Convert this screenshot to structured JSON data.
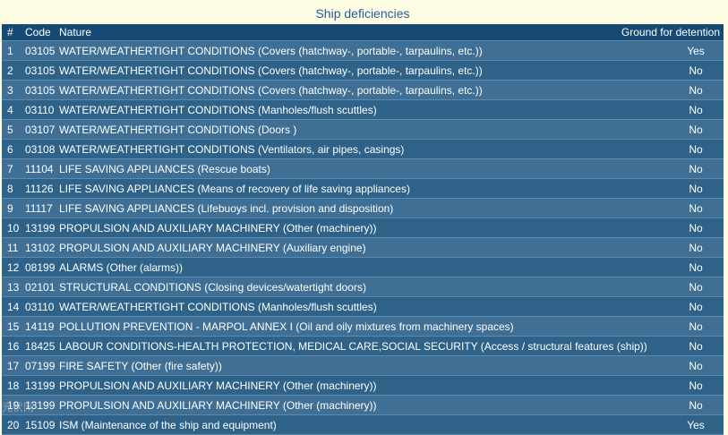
{
  "title": "Ship deficiencies",
  "table": {
    "headers": {
      "num": "#",
      "code": "Code",
      "nature": "Nature",
      "ground": "Ground for detention"
    },
    "rows": [
      {
        "num": "1",
        "code": "03105",
        "nature": "WATER/WEATHERTIGHT CONDITIONS (Covers (hatchway-, portable-, tarpaulins, etc.))",
        "ground": "Yes"
      },
      {
        "num": "2",
        "code": "03105",
        "nature": "WATER/WEATHERTIGHT CONDITIONS (Covers (hatchway-, portable-, tarpaulins, etc.))",
        "ground": "No"
      },
      {
        "num": "3",
        "code": "03105",
        "nature": "WATER/WEATHERTIGHT CONDITIONS (Covers (hatchway-, portable-, tarpaulins, etc.))",
        "ground": "No"
      },
      {
        "num": "4",
        "code": "03110",
        "nature": "WATER/WEATHERTIGHT CONDITIONS (Manholes/flush scuttles)",
        "ground": "No"
      },
      {
        "num": "5",
        "code": "03107",
        "nature": "WATER/WEATHERTIGHT CONDITIONS (Doors )",
        "ground": "No"
      },
      {
        "num": "6",
        "code": "03108",
        "nature": "WATER/WEATHERTIGHT CONDITIONS (Ventilators, air pipes, casings)",
        "ground": "No"
      },
      {
        "num": "7",
        "code": "11104",
        "nature": "LIFE SAVING APPLIANCES (Rescue boats)",
        "ground": "No"
      },
      {
        "num": "8",
        "code": "11126",
        "nature": "LIFE SAVING APPLIANCES (Means of recovery of life saving appliances)",
        "ground": "No"
      },
      {
        "num": "9",
        "code": "11117",
        "nature": "LIFE SAVING APPLIANCES (Lifebuoys incl. provision and disposition)",
        "ground": "No"
      },
      {
        "num": "10",
        "code": "13199",
        "nature": "PROPULSION AND AUXILIARY MACHINERY (Other (machinery))",
        "ground": "No"
      },
      {
        "num": "11",
        "code": "13102",
        "nature": "PROPULSION AND AUXILIARY MACHINERY (Auxiliary engine)",
        "ground": "No"
      },
      {
        "num": "12",
        "code": "08199",
        "nature": "ALARMS (Other (alarms))",
        "ground": "No"
      },
      {
        "num": "13",
        "code": "02101",
        "nature": "STRUCTURAL CONDITIONS (Closing devices/watertight doors)",
        "ground": "No"
      },
      {
        "num": "14",
        "code": "03110",
        "nature": "WATER/WEATHERTIGHT CONDITIONS (Manholes/flush scuttles)",
        "ground": "No"
      },
      {
        "num": "15",
        "code": "14119",
        "nature": "POLLUTION PREVENTION - MARPOL ANNEX I (Oil and oily mixtures from machinery spaces)",
        "ground": "No"
      },
      {
        "num": "16",
        "code": "18425",
        "nature": "LABOUR CONDITIONS-HEALTH PROTECTION, MEDICAL CARE,SOCIAL SECURITY (Access / structural features (ship))",
        "ground": "No"
      },
      {
        "num": "17",
        "code": "07199",
        "nature": "FIRE SAFETY (Other (fire safety))",
        "ground": "No"
      },
      {
        "num": "18",
        "code": "13199",
        "nature": "PROPULSION AND AUXILIARY MACHINERY (Other (machinery))",
        "ground": "No"
      },
      {
        "num": "19",
        "code": "13199",
        "nature": "PROPULSION AND AUXILIARY MACHINERY (Other (machinery))",
        "ground": "No"
      },
      {
        "num": "20",
        "code": "15109",
        "nature": "ISM (Maintenance of the ship and equipment)",
        "ground": "Yes"
      }
    ]
  },
  "watermark": "光伏网"
}
